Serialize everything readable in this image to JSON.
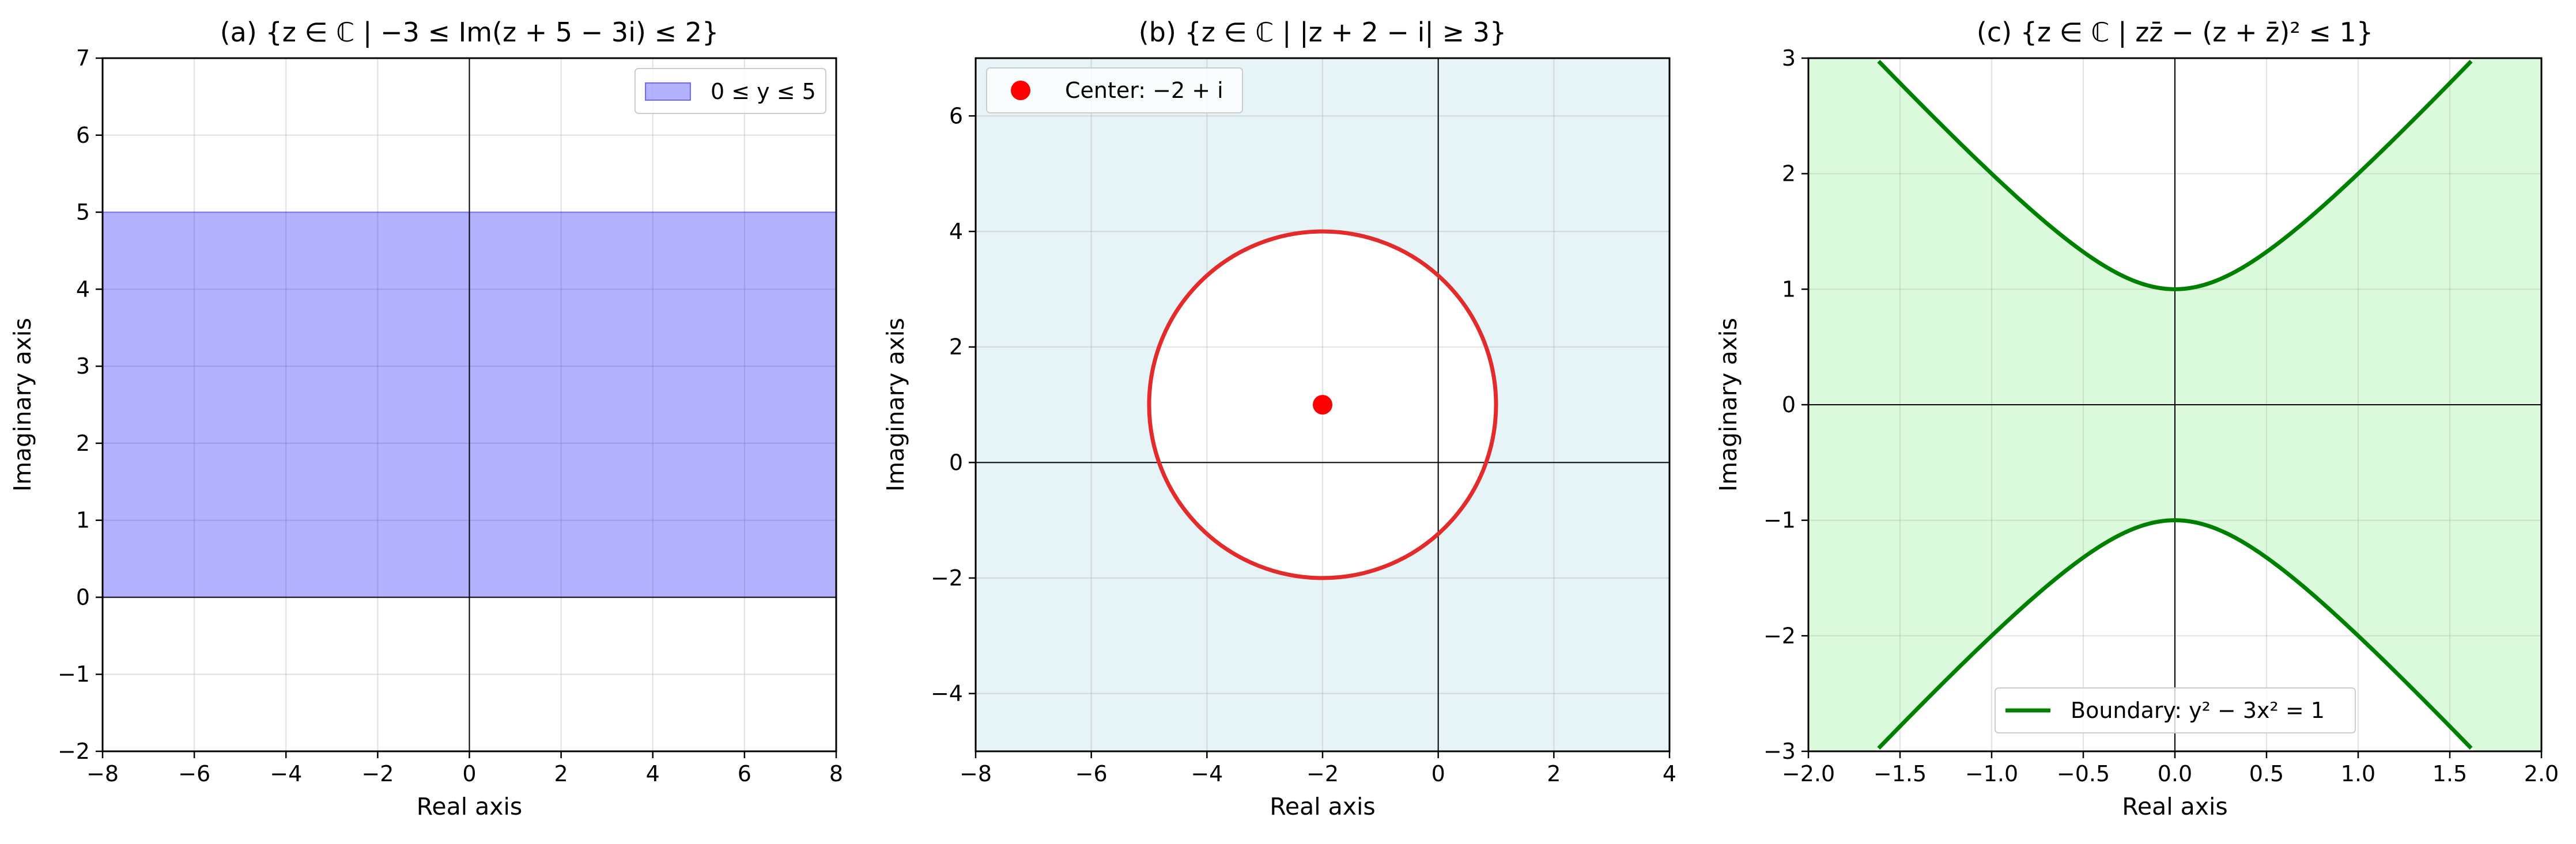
{
  "chart_data": [
    {
      "type": "area",
      "title": "(a) {z ∈ ℂ | −3 ≤ Im(z + 5 − 3i) ≤ 2}",
      "xlabel": "Real axis",
      "ylabel": "Imaginary axis",
      "xlim": [
        -8,
        8
      ],
      "ylim": [
        -2,
        7
      ],
      "xticks": [
        -8,
        -6,
        -4,
        -2,
        0,
        2,
        4,
        6,
        8
      ],
      "yticks": [
        -2,
        -1,
        0,
        1,
        2,
        3,
        4,
        5,
        6,
        7
      ],
      "xtick_labels": [
        "−8",
        "−6",
        "−4",
        "−2",
        "0",
        "2",
        "4",
        "6",
        "8"
      ],
      "ytick_labels": [
        "−2",
        "−1",
        "0",
        "1",
        "2",
        "3",
        "4",
        "5",
        "6",
        "7"
      ],
      "grid": true,
      "legend": {
        "entries": [
          "0 ≤ y ≤ 5"
        ],
        "placement": "upper right"
      },
      "regions": [
        {
          "name": "0 ≤ y ≤ 5",
          "kind": "horizontal-band",
          "y_min": 0,
          "y_max": 5,
          "color": "#0000ff",
          "alpha": 0.3
        }
      ]
    },
    {
      "type": "scatter",
      "title": "(b) {z ∈ ℂ | |z + 2 − i| ≥ 3}",
      "xlabel": "Real axis",
      "ylabel": "Imaginary axis",
      "xlim": [
        -8,
        4
      ],
      "ylim": [
        -5,
        7
      ],
      "xticks": [
        -8,
        -6,
        -4,
        -2,
        0,
        2,
        4
      ],
      "yticks": [
        -4,
        -2,
        0,
        2,
        4,
        6
      ],
      "xtick_labels": [
        "−8",
        "−6",
        "−4",
        "−2",
        "0",
        "2",
        "4"
      ],
      "ytick_labels": [
        "−4",
        "−2",
        "0",
        "2",
        "4",
        "6"
      ],
      "grid": true,
      "legend": {
        "entries": [
          "Center: −2 + i"
        ],
        "placement": "upper left"
      },
      "background_fill": {
        "color": "#add8e6",
        "alpha": 0.3,
        "description": "region outside the circle"
      },
      "circle": {
        "center": [
          -2,
          1
        ],
        "radius": 3,
        "color": "#e32b2b"
      },
      "points": [
        {
          "name": "Center: −2 + i",
          "x": -2,
          "y": 1,
          "color": "#ff0000"
        }
      ]
    },
    {
      "type": "line",
      "title": "(c) {z ∈ ℂ | zz̄ − (z + z̄)² ≤ 1}",
      "xlabel": "Real axis",
      "ylabel": "Imaginary axis",
      "xlim": [
        -2,
        2
      ],
      "ylim": [
        -3,
        3
      ],
      "xticks": [
        -2,
        -1.5,
        -1,
        -0.5,
        0,
        0.5,
        1,
        1.5,
        2
      ],
      "yticks": [
        -3,
        -2,
        -1,
        0,
        1,
        2,
        3
      ],
      "xtick_labels": [
        "−2.0",
        "−1.5",
        "−1.0",
        "−0.5",
        "0.0",
        "0.5",
        "1.0",
        "1.5",
        "2.0"
      ],
      "ytick_labels": [
        "−3",
        "−2",
        "−1",
        "0",
        "1",
        "2",
        "3"
      ],
      "grid": true,
      "legend": {
        "entries": [
          "Boundary: y² − 3x² = 1"
        ],
        "placement": "lower center"
      },
      "region": {
        "description": "|y| ≤ sqrt(1 + 3x²)",
        "color": "#90ee90",
        "alpha": 0.32
      },
      "series": [
        {
          "name": "Boundary: y² − 3x² = 1",
          "equation": "y = ±sqrt(1 + 3x²)",
          "color": "#008000"
        }
      ]
    }
  ]
}
